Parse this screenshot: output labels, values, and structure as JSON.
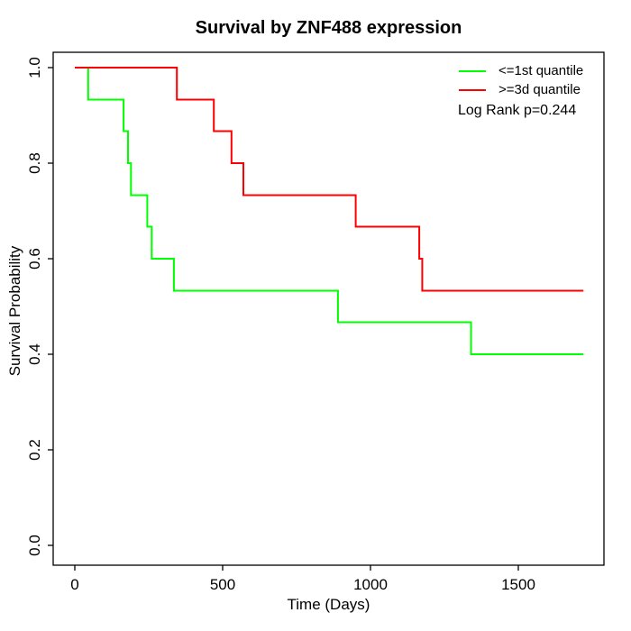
{
  "chart_data": {
    "type": "line",
    "variant": "kaplan_meier_step",
    "title": "Survival by ZNF488 expression",
    "xlabel": "Time (Days)",
    "ylabel": "Survival Probability",
    "xlim": [
      0,
      1720
    ],
    "ylim": [
      0.0,
      1.0
    ],
    "grid": false,
    "axis_color": "#000000",
    "background_color": "#ffffff",
    "xticks": {
      "values": [
        0,
        500,
        1000,
        1500
      ],
      "labels": [
        "0",
        "500",
        "1000",
        "1500"
      ]
    },
    "yticks": {
      "values": [
        0.0,
        0.2,
        0.4,
        0.6,
        0.8,
        1.0
      ],
      "labels": [
        "0.0",
        "0.2",
        "0.4",
        "0.6",
        "0.8",
        "1.0"
      ]
    },
    "legend": {
      "position": "top-right"
    },
    "annotation": "Log Rank p=0.244",
    "series": [
      {
        "name": "<=1st quantile",
        "color": "#00ff00",
        "step_points": [
          [
            0,
            1.0
          ],
          [
            45,
            0.933
          ],
          [
            165,
            0.867
          ],
          [
            180,
            0.8
          ],
          [
            190,
            0.733
          ],
          [
            245,
            0.667
          ],
          [
            260,
            0.6
          ],
          [
            335,
            0.533
          ],
          [
            890,
            0.467
          ],
          [
            1340,
            0.4
          ],
          [
            1720,
            0.4
          ]
        ]
      },
      {
        "name": ">=3d quantile",
        "color": "#ff0000",
        "step_points": [
          [
            0,
            1.0
          ],
          [
            345,
            0.933
          ],
          [
            470,
            0.867
          ],
          [
            530,
            0.8
          ],
          [
            570,
            0.733
          ],
          [
            950,
            0.667
          ],
          [
            1165,
            0.6
          ],
          [
            1175,
            0.533
          ],
          [
            1720,
            0.533
          ]
        ]
      }
    ]
  }
}
